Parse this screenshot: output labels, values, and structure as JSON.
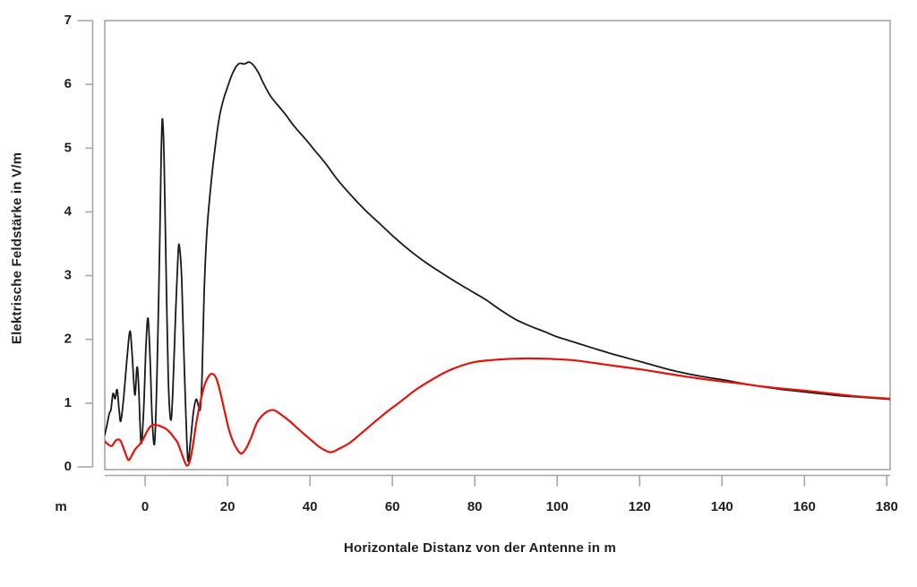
{
  "figure": {
    "background": "#ffffff"
  },
  "chart_data": {
    "type": "line",
    "title": "",
    "xlabel": "Horizontale Distanz von der Antenne in m",
    "ylabel": "Elektrische Feldstärke in V/m",
    "x_unit": "m",
    "y_unit": "V/m",
    "xlim": [
      -9.8,
      180.8
    ],
    "ylim": [
      0,
      7
    ],
    "x_ticks": [
      0,
      20,
      40,
      60,
      80,
      100,
      120,
      140,
      160,
      180
    ],
    "y_ticks": [
      0,
      1,
      2,
      3,
      4,
      5,
      6,
      7
    ],
    "grid": false,
    "legend": "none",
    "axis_color": "#a6a6a6",
    "label_color": "#1f1f1f",
    "series": [
      {
        "name": "schwarze Kurve",
        "color": "#191919",
        "width": 1.8,
        "points": [
          [
            -9.8,
            0.5
          ],
          [
            -9.2,
            0.68
          ],
          [
            -8.7,
            0.84
          ],
          [
            -8.3,
            0.9
          ],
          [
            -7.8,
            1.15
          ],
          [
            -7.3,
            1.07
          ],
          [
            -6.8,
            1.21
          ],
          [
            -6.3,
            0.88
          ],
          [
            -5.9,
            0.72
          ],
          [
            -5.2,
            1.1
          ],
          [
            -4.4,
            1.7
          ],
          [
            -3.7,
            2.13
          ],
          [
            -3.2,
            1.8
          ],
          [
            -2.5,
            1.13
          ],
          [
            -2.0,
            1.56
          ],
          [
            -1.6,
            1.3
          ],
          [
            -1.0,
            0.38
          ],
          [
            -0.4,
            0.85
          ],
          [
            0.2,
            1.9
          ],
          [
            0.7,
            2.33
          ],
          [
            1.2,
            1.7
          ],
          [
            1.7,
            0.75
          ],
          [
            2.3,
            0.38
          ],
          [
            2.9,
            1.5
          ],
          [
            3.5,
            3.4
          ],
          [
            3.9,
            4.9
          ],
          [
            4.2,
            5.46
          ],
          [
            4.6,
            4.8
          ],
          [
            5.1,
            3.0
          ],
          [
            5.6,
            1.4
          ],
          [
            6.2,
            0.74
          ],
          [
            6.7,
            1.15
          ],
          [
            7.4,
            2.4
          ],
          [
            8.0,
            3.35
          ],
          [
            8.3,
            3.46
          ],
          [
            8.8,
            3.05
          ],
          [
            9.3,
            2.0
          ],
          [
            9.9,
            0.8
          ],
          [
            10.4,
            0.1
          ],
          [
            11.0,
            0.4
          ],
          [
            11.7,
            0.85
          ],
          [
            12.4,
            1.06
          ],
          [
            13.0,
            0.94
          ],
          [
            13.4,
            0.92
          ],
          [
            13.8,
            1.4
          ],
          [
            14.3,
            2.7
          ],
          [
            15.0,
            3.7
          ],
          [
            16.0,
            4.45
          ],
          [
            17.0,
            5.02
          ],
          [
            18.0,
            5.48
          ],
          [
            19.0,
            5.76
          ],
          [
            20.0,
            5.96
          ],
          [
            21.0,
            6.14
          ],
          [
            22.0,
            6.27
          ],
          [
            22.9,
            6.33
          ],
          [
            24.1,
            6.32
          ],
          [
            25.2,
            6.35
          ],
          [
            26.3,
            6.3
          ],
          [
            27.6,
            6.17
          ],
          [
            28.7,
            6.02
          ],
          [
            30.6,
            5.8
          ],
          [
            33.8,
            5.55
          ],
          [
            36.2,
            5.34
          ],
          [
            38.8,
            5.15
          ],
          [
            41.2,
            4.96
          ],
          [
            43.9,
            4.75
          ],
          [
            46.6,
            4.51
          ],
          [
            49.7,
            4.28
          ],
          [
            53.2,
            4.04
          ],
          [
            57.0,
            3.81
          ],
          [
            60.5,
            3.6
          ],
          [
            64.3,
            3.39
          ],
          [
            68.0,
            3.21
          ],
          [
            71.5,
            3.06
          ],
          [
            75.2,
            2.91
          ],
          [
            78.8,
            2.77
          ],
          [
            82.5,
            2.63
          ],
          [
            86.5,
            2.45
          ],
          [
            90.0,
            2.31
          ],
          [
            93.4,
            2.21
          ],
          [
            97.0,
            2.12
          ],
          [
            100.0,
            2.04
          ],
          [
            104.0,
            1.96
          ],
          [
            107.9,
            1.88
          ],
          [
            114.0,
            1.76
          ],
          [
            120.3,
            1.65
          ],
          [
            127.0,
            1.53
          ],
          [
            134.1,
            1.43
          ],
          [
            140.7,
            1.36
          ],
          [
            147.5,
            1.28
          ],
          [
            154.0,
            1.22
          ],
          [
            161.0,
            1.17
          ],
          [
            168.0,
            1.12
          ],
          [
            174.5,
            1.09
          ],
          [
            180.8,
            1.06
          ]
        ]
      },
      {
        "name": "rote Kurve",
        "color": "#e41309",
        "width": 2.2,
        "points": [
          [
            -9.8,
            0.4
          ],
          [
            -8.9,
            0.35
          ],
          [
            -8.1,
            0.33
          ],
          [
            -7.0,
            0.42
          ],
          [
            -6.0,
            0.41
          ],
          [
            -5.0,
            0.25
          ],
          [
            -4.1,
            0.11
          ],
          [
            -3.4,
            0.16
          ],
          [
            -2.5,
            0.27
          ],
          [
            -1.5,
            0.34
          ],
          [
            -0.6,
            0.42
          ],
          [
            0.4,
            0.55
          ],
          [
            1.2,
            0.63
          ],
          [
            2.0,
            0.66
          ],
          [
            3.2,
            0.65
          ],
          [
            4.4,
            0.62
          ],
          [
            5.4,
            0.58
          ],
          [
            6.3,
            0.52
          ],
          [
            7.1,
            0.45
          ],
          [
            7.9,
            0.38
          ],
          [
            8.8,
            0.22
          ],
          [
            9.6,
            0.08
          ],
          [
            10.2,
            0.02
          ],
          [
            10.8,
            0.08
          ],
          [
            11.5,
            0.3
          ],
          [
            12.4,
            0.68
          ],
          [
            13.4,
            1.02
          ],
          [
            14.4,
            1.28
          ],
          [
            15.4,
            1.42
          ],
          [
            16.2,
            1.46
          ],
          [
            17.2,
            1.4
          ],
          [
            18.2,
            1.18
          ],
          [
            19.2,
            0.9
          ],
          [
            20.4,
            0.57
          ],
          [
            21.6,
            0.36
          ],
          [
            22.6,
            0.25
          ],
          [
            23.4,
            0.21
          ],
          [
            24.4,
            0.28
          ],
          [
            25.6,
            0.44
          ],
          [
            27.2,
            0.7
          ],
          [
            29.2,
            0.85
          ],
          [
            31.2,
            0.89
          ],
          [
            33.2,
            0.81
          ],
          [
            35.2,
            0.71
          ],
          [
            37.6,
            0.57
          ],
          [
            40.3,
            0.42
          ],
          [
            42.6,
            0.3
          ],
          [
            45.0,
            0.23
          ],
          [
            47.2,
            0.29
          ],
          [
            49.7,
            0.38
          ],
          [
            52.5,
            0.53
          ],
          [
            55.6,
            0.7
          ],
          [
            58.8,
            0.87
          ],
          [
            62.1,
            1.03
          ],
          [
            65.7,
            1.21
          ],
          [
            69.4,
            1.36
          ],
          [
            73.0,
            1.49
          ],
          [
            76.4,
            1.58
          ],
          [
            79.6,
            1.64
          ],
          [
            83.0,
            1.67
          ],
          [
            87.0,
            1.69
          ],
          [
            91.0,
            1.7
          ],
          [
            95.0,
            1.7
          ],
          [
            100.0,
            1.69
          ],
          [
            104.3,
            1.67
          ],
          [
            109.0,
            1.63
          ],
          [
            114.5,
            1.58
          ],
          [
            120.3,
            1.53
          ],
          [
            127.0,
            1.46
          ],
          [
            134.1,
            1.39
          ],
          [
            140.0,
            1.34
          ],
          [
            144.3,
            1.31
          ],
          [
            150.0,
            1.26
          ],
          [
            156.0,
            1.22
          ],
          [
            161.0,
            1.19
          ],
          [
            168.0,
            1.14
          ],
          [
            174.0,
            1.1
          ],
          [
            180.8,
            1.07
          ]
        ]
      }
    ]
  }
}
